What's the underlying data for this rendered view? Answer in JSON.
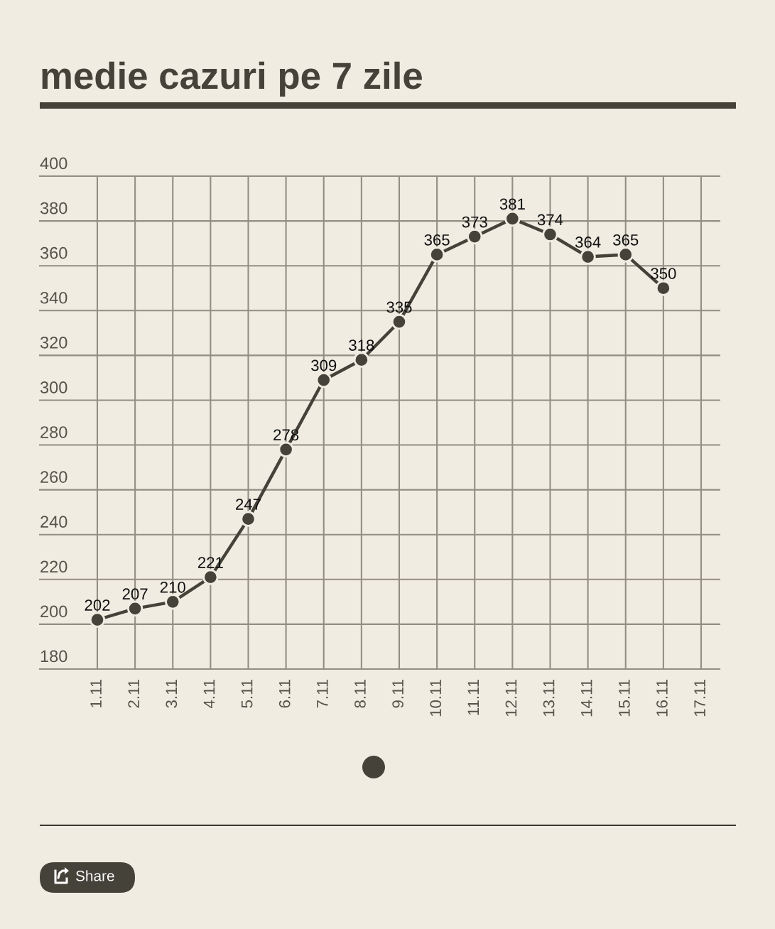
{
  "chart_data": {
    "type": "line",
    "title": "medie cazuri pe 7 zile",
    "categories": [
      "1.11",
      "2.11",
      "3.11",
      "4.11",
      "5.11",
      "6.11",
      "7.11",
      "8.11",
      "9.11",
      "10.11",
      "11.11",
      "12.11",
      "13.11",
      "14.11",
      "15.11",
      "16.11",
      "17.11"
    ],
    "series": [
      {
        "color": "#45423a",
        "values": [
          202,
          207,
          210,
          221,
          247,
          278,
          309,
          318,
          335,
          365,
          373,
          381,
          374,
          364,
          365,
          350,
          null
        ]
      }
    ],
    "ylim": [
      180,
      400
    ],
    "yticks": [
      180,
      200,
      220,
      240,
      260,
      280,
      300,
      320,
      340,
      360,
      380,
      400
    ],
    "grid": true,
    "marker": "circle",
    "line_style": "solid",
    "data_labels": true,
    "annotations": [
      "Share"
    ]
  }
}
